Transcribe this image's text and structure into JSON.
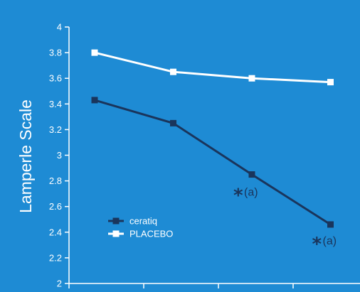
{
  "chart_data": {
    "type": "line",
    "ylabel": "Lamperle Scale",
    "ylim": [
      2,
      4
    ],
    "yticks": [
      "2",
      "2.2",
      "2.4",
      "2.6",
      "2.8",
      "3",
      "3.2",
      "3.4",
      "3.6",
      "3.8",
      "4"
    ],
    "x": [
      1,
      2,
      3,
      4
    ],
    "series": [
      {
        "name": "ceratiq",
        "color": "#1a355c",
        "values": [
          3.43,
          3.25,
          2.85,
          2.46
        ]
      },
      {
        "name": "PLACEBO",
        "color": "#ffffff",
        "values": [
          3.8,
          3.65,
          3.6,
          3.57
        ]
      }
    ],
    "legend": {
      "position": "bottom-left"
    },
    "annotations": [
      {
        "series": "ceratiq",
        "point": 3,
        "star": "*",
        "text": "(a)"
      },
      {
        "series": "ceratiq",
        "point": 4,
        "star": "*",
        "text": "(a)"
      }
    ],
    "grid": false,
    "background": "#1e8bd4"
  }
}
